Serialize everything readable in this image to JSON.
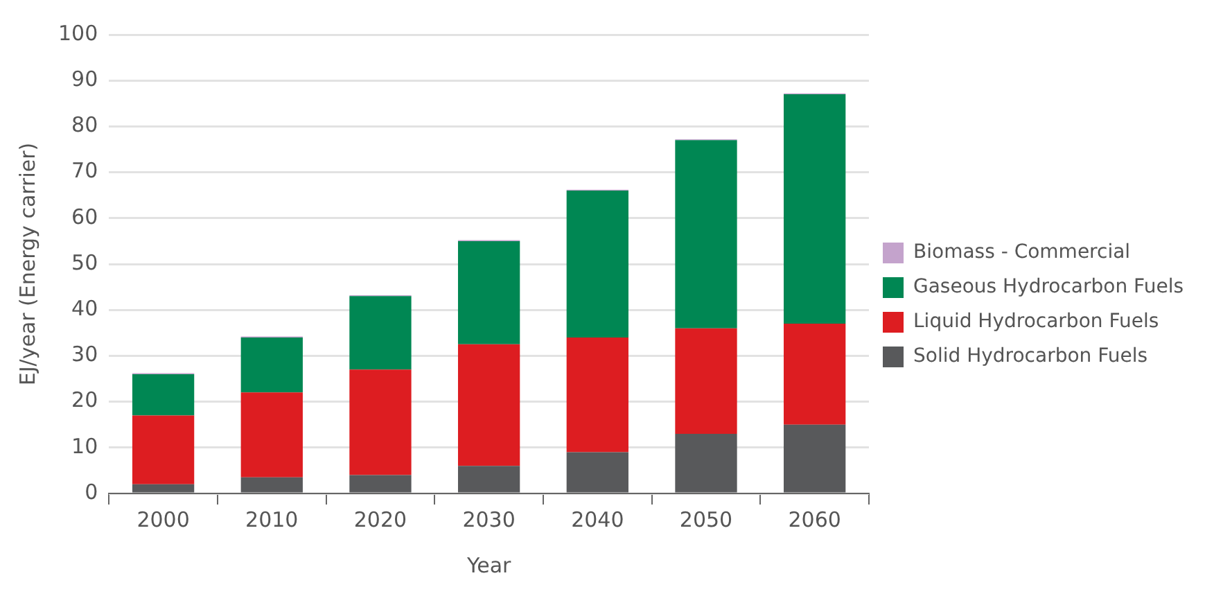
{
  "chart_data": {
    "type": "bar",
    "stacked": true,
    "xlabel": "Year",
    "ylabel": "EJ/year (Energy carrier)",
    "categories": [
      "2000",
      "2010",
      "2020",
      "2030",
      "2040",
      "2050",
      "2060"
    ],
    "series": [
      {
        "name": "Solid Hydrocarbon Fuels",
        "color": "#58595b",
        "values": [
          2,
          3.5,
          4,
          6,
          9,
          13,
          15
        ]
      },
      {
        "name": "Liquid Hydrocarbon Fuels",
        "color": "#dd1d21",
        "values": [
          15,
          18.5,
          23,
          26.5,
          25,
          23,
          22
        ]
      },
      {
        "name": "Gaseous Hydrocarbon Fuels",
        "color": "#008753",
        "values": [
          9,
          12,
          16,
          22.5,
          32,
          41,
          50
        ]
      },
      {
        "name": "Biomass - Commercial",
        "color": "#c4a3cc",
        "values": [
          0.2,
          0.2,
          0.2,
          0.2,
          0.2,
          0.2,
          0.2
        ]
      }
    ],
    "ylim": [
      0,
      100
    ],
    "yticks": [
      0,
      10,
      20,
      30,
      40,
      50,
      60,
      70,
      80,
      90,
      100
    ],
    "grid": "y",
    "legend": "right"
  }
}
